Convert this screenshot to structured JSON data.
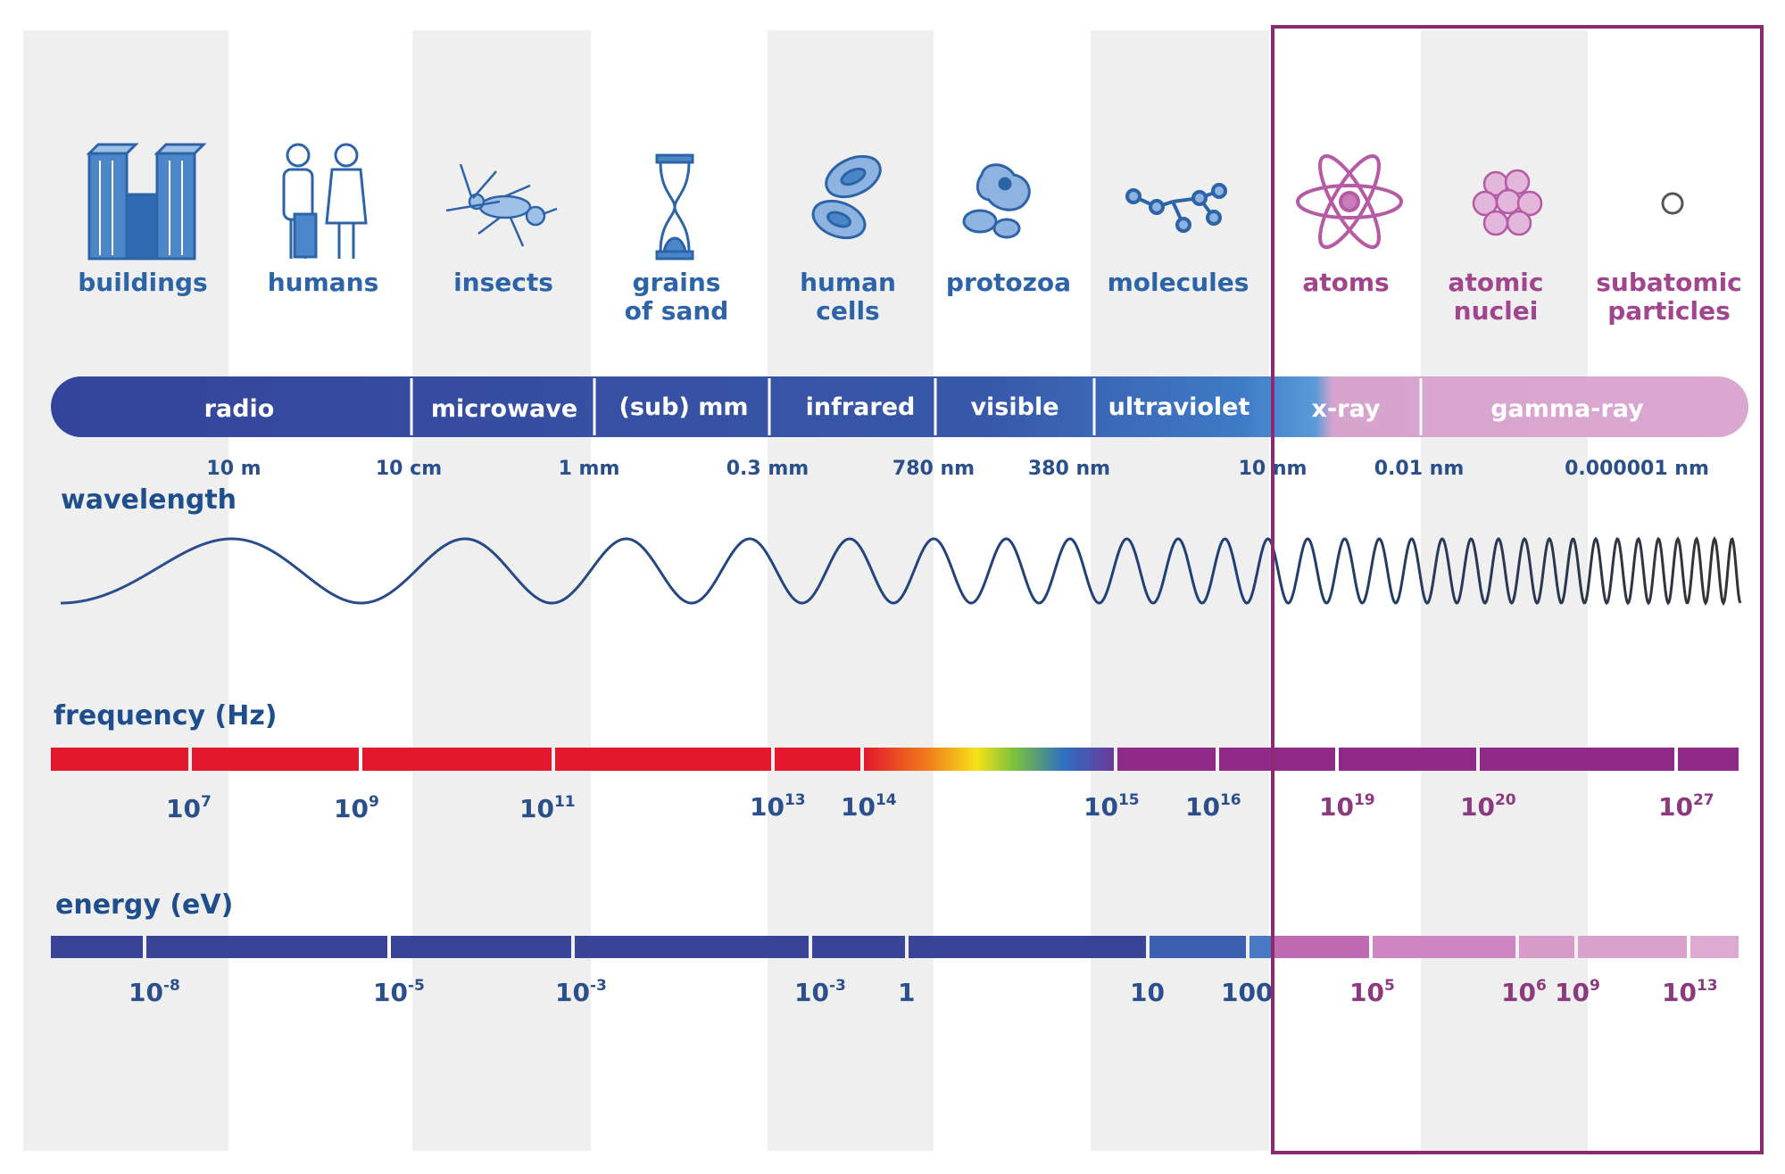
{
  "objects": [
    {
      "lines": [
        "buildings"
      ],
      "icon": "buildings-icon"
    },
    {
      "lines": [
        "humans"
      ],
      "icon": "humans-icon"
    },
    {
      "lines": [
        "insects"
      ],
      "icon": "insect-icon"
    },
    {
      "lines": [
        "grains",
        "of sand"
      ],
      "icon": "hourglass-icon"
    },
    {
      "lines": [
        "human",
        "cells"
      ],
      "icon": "cells-icon"
    },
    {
      "lines": [
        "protozoa"
      ],
      "icon": "protozoa-icon"
    },
    {
      "lines": [
        "molecules"
      ],
      "icon": "molecule-icon"
    },
    {
      "lines": [
        "atoms"
      ],
      "icon": "atom-icon"
    },
    {
      "lines": [
        "atomic",
        "nuclei"
      ],
      "icon": "nucleus-icon"
    },
    {
      "lines": [
        "subatomic",
        "particles"
      ],
      "icon": "particle-icon"
    }
  ],
  "bands": [
    "radio",
    "microwave",
    "(sub) mm",
    "infrared",
    "visible",
    "ultraviolet",
    "x-ray",
    "gamma-ray"
  ],
  "wavelength": {
    "label": "wavelength",
    "ticks": [
      "10 m",
      "10 cm",
      "1 mm",
      "0.3 mm",
      "780 nm",
      "380 nm",
      "10 nm",
      "0.01 nm",
      "0.000001 nm"
    ]
  },
  "frequency": {
    "label": "frequency (Hz)",
    "ticks": [
      {
        "base": "10",
        "exp": "7"
      },
      {
        "base": "10",
        "exp": "9"
      },
      {
        "base": "10",
        "exp": "11"
      },
      {
        "base": "10",
        "exp": "13"
      },
      {
        "base": "10",
        "exp": "14"
      },
      {
        "base": "10",
        "exp": "15"
      },
      {
        "base": "10",
        "exp": "16"
      },
      {
        "base": "10",
        "exp": "19"
      },
      {
        "base": "10",
        "exp": "20"
      },
      {
        "base": "10",
        "exp": "27"
      }
    ]
  },
  "energy": {
    "label": "energy (eV)",
    "ticks": [
      {
        "base": "10",
        "exp": "-8"
      },
      {
        "base": "10",
        "exp": "-5"
      },
      {
        "base": "10",
        "exp": "-3"
      },
      {
        "base": "10",
        "exp": "-3"
      },
      {
        "base": "1",
        "exp": ""
      },
      {
        "base": "10",
        "exp": ""
      },
      {
        "base": "100",
        "exp": ""
      },
      {
        "base": "10",
        "exp": "5"
      },
      {
        "base": "10",
        "exp": "6"
      },
      {
        "base": "10",
        "exp": "9"
      },
      {
        "base": "10",
        "exp": "13"
      }
    ]
  },
  "colors": {
    "navy": "#3a4496",
    "band_blue": "#3c64b4",
    "light_blue": "#5a8fd0",
    "pink": "#d9a6cf",
    "pink_dark": "#c07ab5",
    "highlight_frame": "#8b2a6f",
    "red": "#e3182c",
    "purple": "#8e2a86",
    "text_blue": "#2d64a8"
  }
}
